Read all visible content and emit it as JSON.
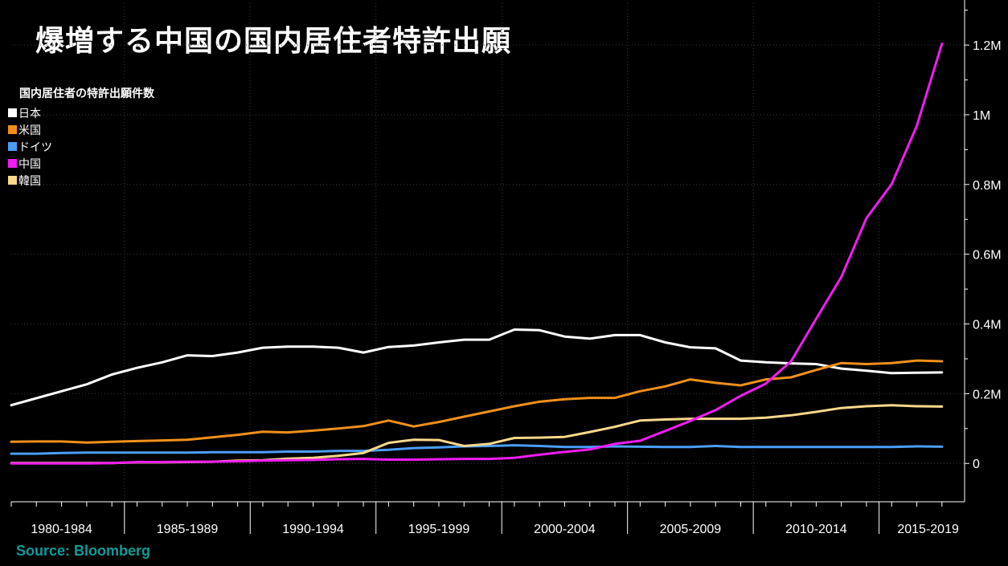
{
  "title": "爆増する中国の国内居住者特許出願",
  "source": "Source: Bloomberg",
  "colors": {
    "background": "#000000",
    "text": "#ffffff",
    "source": "#0e9b9b",
    "grid": "#3a3a3a"
  },
  "chart_data": {
    "type": "line",
    "title": "爆増する中国の国内居住者特許出願",
    "legend_title": "国内居住者の特許出願件数",
    "legend_position": "top-left",
    "x": [
      1980,
      1981,
      1982,
      1983,
      1984,
      1985,
      1986,
      1987,
      1988,
      1989,
      1990,
      1991,
      1992,
      1993,
      1994,
      1995,
      1996,
      1997,
      1998,
      1999,
      2000,
      2001,
      2002,
      2003,
      2004,
      2005,
      2006,
      2007,
      2008,
      2009,
      2010,
      2011,
      2012,
      2013,
      2014,
      2015,
      2016,
      2017
    ],
    "x_tick_labels": [
      "1980-1984",
      "1985-1989",
      "1990-1994",
      "1995-1999",
      "2000-2004",
      "2005-2009",
      "2010-2014",
      "2015-2019"
    ],
    "xlim": [
      1980,
      2017.9
    ],
    "ylim": [
      -0.11,
      1.32
    ],
    "y_ticks": [
      0,
      0.2,
      0.4,
      0.6,
      0.8,
      1.0,
      1.2
    ],
    "y_tick_labels": [
      "0",
      "0.2M",
      "0.4M",
      "0.6M",
      "0.8M",
      "1M",
      "1.2M"
    ],
    "y_unit": "M",
    "grid": true,
    "series": [
      {
        "name": "日本",
        "color": "#ffffff",
        "values": [
          0.167,
          0.187,
          0.207,
          0.227,
          0.255,
          0.274,
          0.29,
          0.31,
          0.308,
          0.318,
          0.332,
          0.335,
          0.335,
          0.332,
          0.318,
          0.334,
          0.338,
          0.347,
          0.355,
          0.355,
          0.384,
          0.382,
          0.364,
          0.358,
          0.368,
          0.368,
          0.347,
          0.333,
          0.33,
          0.295,
          0.29,
          0.287,
          0.285,
          0.272,
          0.266,
          0.259,
          0.26,
          0.261
        ]
      },
      {
        "name": "米国",
        "color": "#f0901a",
        "values": [
          0.062,
          0.063,
          0.063,
          0.06,
          0.062,
          0.064,
          0.066,
          0.068,
          0.075,
          0.082,
          0.091,
          0.089,
          0.094,
          0.1,
          0.107,
          0.123,
          0.106,
          0.119,
          0.134,
          0.149,
          0.164,
          0.177,
          0.184,
          0.188,
          0.188,
          0.207,
          0.221,
          0.241,
          0.231,
          0.224,
          0.241,
          0.247,
          0.268,
          0.288,
          0.285,
          0.288,
          0.295,
          0.293
        ]
      },
      {
        "name": "ドイツ",
        "color": "#4b9ef7",
        "values": [
          0.028,
          0.028,
          0.03,
          0.031,
          0.031,
          0.031,
          0.031,
          0.031,
          0.032,
          0.032,
          0.032,
          0.034,
          0.034,
          0.036,
          0.036,
          0.039,
          0.044,
          0.046,
          0.049,
          0.05,
          0.052,
          0.05,
          0.047,
          0.047,
          0.049,
          0.048,
          0.047,
          0.047,
          0.05,
          0.047,
          0.047,
          0.047,
          0.047,
          0.047,
          0.047,
          0.047,
          0.049,
          0.048
        ]
      },
      {
        "name": "中国",
        "color": "#f01cf0",
        "values": [
          0.0,
          0.0,
          0.0,
          0.0,
          0.001,
          0.004,
          0.004,
          0.005,
          0.005,
          0.006,
          0.008,
          0.009,
          0.01,
          0.012,
          0.013,
          0.011,
          0.011,
          0.012,
          0.013,
          0.013,
          0.016,
          0.025,
          0.033,
          0.04,
          0.056,
          0.065,
          0.093,
          0.122,
          0.153,
          0.194,
          0.229,
          0.293,
          0.415,
          0.535,
          0.704,
          0.801,
          0.968,
          1.204
        ]
      },
      {
        "name": "韓国",
        "color": "#fbd98a",
        "values": [
          0.001,
          0.001,
          0.001,
          0.001,
          0.001,
          0.003,
          0.003,
          0.004,
          0.005,
          0.008,
          0.009,
          0.014,
          0.016,
          0.022,
          0.03,
          0.059,
          0.068,
          0.067,
          0.05,
          0.056,
          0.073,
          0.074,
          0.076,
          0.09,
          0.105,
          0.123,
          0.126,
          0.128,
          0.128,
          0.128,
          0.131,
          0.138,
          0.148,
          0.159,
          0.164,
          0.167,
          0.164,
          0.163
        ]
      }
    ]
  }
}
